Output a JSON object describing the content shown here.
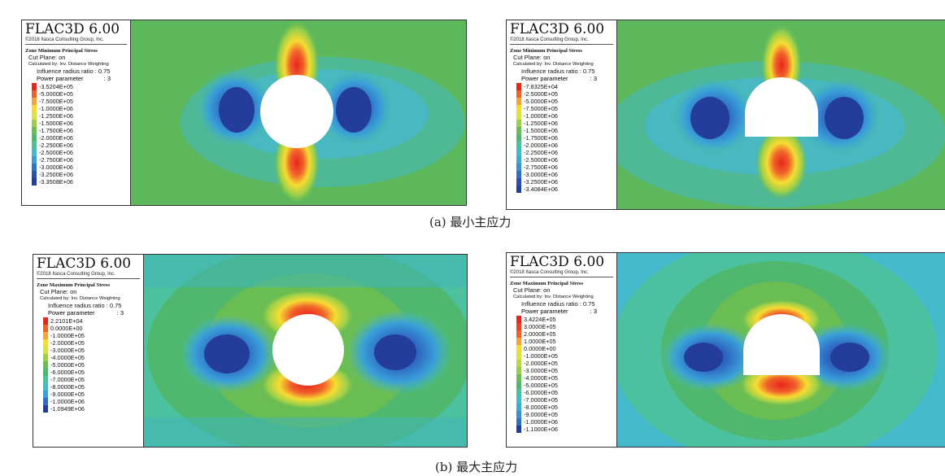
{
  "panels": [
    {
      "brand": "FLAC3D 6.00",
      "copyright": "©2018 Itasca Consulting Group, Inc.",
      "zone_title": "Zone Minimum Principal Stress",
      "cut_plane": "Cut Plane: on",
      "calculated_by": "Calculated by: Inv. Distance Weighting",
      "influence": "Influence radius ratio : 0.75",
      "power_label": "Power parameter",
      "power_value": ": 3",
      "legend_values": [
        "-3.5204E+05",
        "-5.0000E+05",
        "-7.5000E+05",
        "-1.0000E+06",
        "-1.2500E+06",
        "-1.5000E+06",
        "-1.7500E+06",
        "-2.0000E+06",
        "-2.2500E+06",
        "-2.5000E+06",
        "-2.7500E+06",
        "-3.0000E+06",
        "-3.2500E+06",
        "-3.3508E+06"
      ],
      "legend_colors": [
        "#e8261d",
        "#f0622a",
        "#f4a43a",
        "#f6dc32",
        "#d7e33f",
        "#9ccf49",
        "#6abd53",
        "#4fb86e",
        "#4cc1a0",
        "#45b9cc",
        "#3a9fd8",
        "#2f73c9",
        "#2a4fb2",
        "#243c9a"
      ],
      "opening": "circle",
      "mode": "min"
    },
    {
      "brand": "FLAC3D 6.00",
      "copyright": "©2018 Itasca Consulting Group, Inc.",
      "zone_title": "Zone Minimum Principal Stress",
      "cut_plane": "Cut Plane: on",
      "calculated_by": "Calculated by: Inv. Distance Weighting",
      "influence": "Influence radius ratio : 0.75",
      "power_label": "Power parameter",
      "power_value": ": 3",
      "legend_values": [
        "-7.8325E+04",
        "-2.5000E+05",
        "-5.0000E+05",
        "-7.5000E+05",
        "-1.0000E+06",
        "-1.2500E+06",
        "-1.5000E+06",
        "-1.7500E+06",
        "-2.0000E+06",
        "-2.2500E+06",
        "-2.5000E+06",
        "-2.7500E+06",
        "-3.0000E+06",
        "-3.2500E+06",
        "-3.4084E+06"
      ],
      "legend_colors": [
        "#e8261d",
        "#f0622a",
        "#f4a43a",
        "#f6dc32",
        "#d7e33f",
        "#9ccf49",
        "#6abd53",
        "#4fb86e",
        "#4cc1a0",
        "#45b9cc",
        "#3fa9d6",
        "#3a8fd2",
        "#2f6ec5",
        "#2a4fb2",
        "#243c9a"
      ],
      "opening": "arch",
      "mode": "min"
    },
    {
      "brand": "FLAC3D 6.00",
      "copyright": "©2018 Itasca Consulting Group, Inc.",
      "zone_title": "Zone Maximum Principal Stress",
      "cut_plane": "Cut Plane: on",
      "calculated_by": "Calculated by: Inv. Distance Weighting",
      "influence": "Influence radius ratio : 0.75",
      "power_label": "Power parameter",
      "power_value": ": 3",
      "legend_values": [
        "2.2101E+04",
        "0.0000E+00",
        "-1.0000E+05",
        "-2.0000E+05",
        "-3.0000E+05",
        "-4.0000E+05",
        "-5.0000E+05",
        "-6.0000E+05",
        "-7.0000E+05",
        "-8.0000E+05",
        "-9.0000E+05",
        "-1.0000E+06",
        "-1.0949E+06"
      ],
      "legend_colors": [
        "#e8261d",
        "#f0622a",
        "#f4a43a",
        "#f6dc32",
        "#d7e33f",
        "#9ccf49",
        "#6abd53",
        "#4fb86e",
        "#4cc1a0",
        "#45b9cc",
        "#3a9fd8",
        "#2f6ec5",
        "#243c9a"
      ],
      "opening": "circle",
      "mode": "max"
    },
    {
      "brand": "FLAC3D 6.00",
      "copyright": "©2018 Itasca Consulting Group, Inc.",
      "zone_title": "Zone Maximum Principal Stress",
      "cut_plane": "Cut Plane: on",
      "calculated_by": "Calculated by: Inv. Distance Weighting",
      "influence": "Influence radius ratio : 0.75",
      "power_label": "Power parameter",
      "power_value": ": 3",
      "legend_values": [
        "3.4224E+05",
        "3.0000E+05",
        "2.0000E+05",
        "1.0000E+05",
        "0.0000E+00",
        "-1.0000E+05",
        "-2.0000E+05",
        "-3.0000E+05",
        "-4.0000E+05",
        "-5.0000E+05",
        "-6.0000E+05",
        "-7.0000E+05",
        "-8.0000E+05",
        "-9.0000E+05",
        "-1.0000E+06",
        "-1.1000E+06"
      ],
      "legend_colors": [
        "#e8261d",
        "#ec4225",
        "#f0622a",
        "#f4a43a",
        "#f6dc32",
        "#d7e33f",
        "#b5d846",
        "#9ccf49",
        "#6abd53",
        "#4fb86e",
        "#4cc1a0",
        "#45b9cc",
        "#3fa9d6",
        "#3a8fd2",
        "#2f6ec5",
        "#243c9a"
      ],
      "opening": "arch",
      "mode": "max"
    }
  ],
  "captions": {
    "a": "(a) 最小主应力",
    "b": "(b) 最大主应力"
  }
}
